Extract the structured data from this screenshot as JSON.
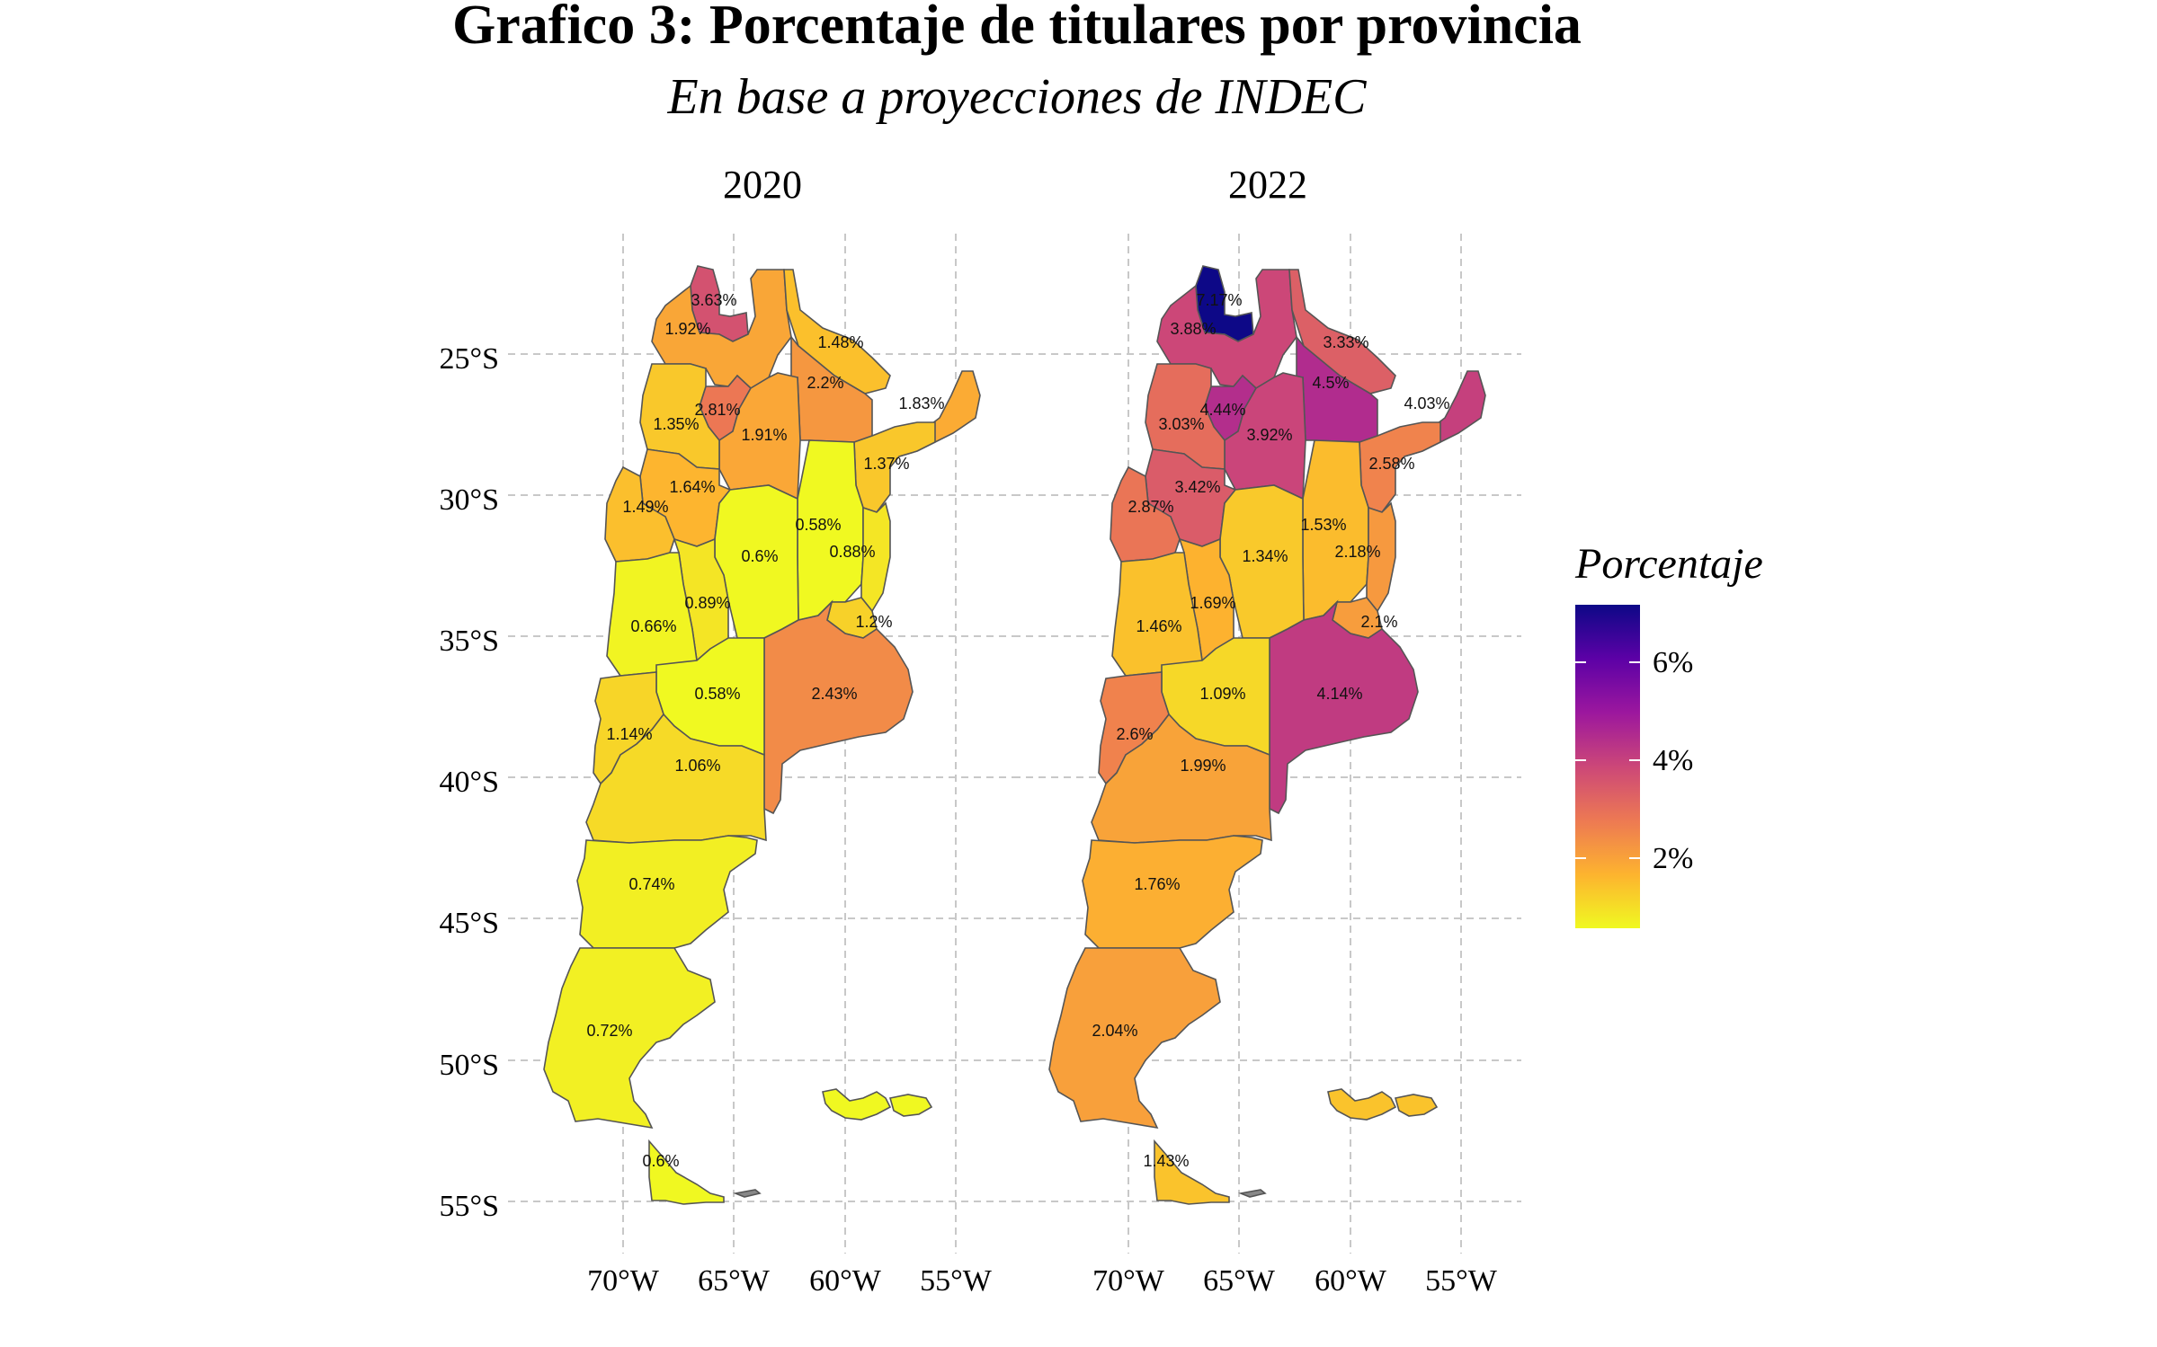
{
  "title": "Grafico 3: Porcentaje de titulares por provincia",
  "subtitle": "En base a proyecciones de INDEC",
  "facets": [
    "2020",
    "2022"
  ],
  "axes": {
    "lat_labels": [
      "25°S",
      "30°S",
      "35°S",
      "40°S",
      "45°S",
      "50°S",
      "55°S"
    ],
    "lon_labels": [
      "70°W",
      "65°W",
      "60°W",
      "55°W"
    ]
  },
  "legend": {
    "title": "Porcentaje",
    "ticks": [
      "6%",
      "4%",
      "2%"
    ],
    "scale": "plasma",
    "min": 0.58,
    "max": 7.17,
    "colors": [
      "#f0f921",
      "#fdb32f",
      "#ed7953",
      "#cc4778",
      "#9c179e",
      "#5c01a6",
      "#0d0887"
    ]
  },
  "provinces": [
    {
      "name": "Jujuy",
      "v2020": "3.63%",
      "v2022": "7.17%"
    },
    {
      "name": "Salta",
      "v2020": "1.92%",
      "v2022": "3.88%"
    },
    {
      "name": "Formosa",
      "v2020": "1.48%",
      "v2022": "3.33%"
    },
    {
      "name": "Chaco",
      "v2020": "2.2%",
      "v2022": "4.5%"
    },
    {
      "name": "Misiones",
      "v2020": "1.83%",
      "v2022": "4.03%"
    },
    {
      "name": "Tucuman",
      "v2020": "2.81%",
      "v2022": "4.44%"
    },
    {
      "name": "Santiago del Estero",
      "v2020": "1.91%",
      "v2022": "3.92%"
    },
    {
      "name": "Catamarca",
      "v2020": "1.35%",
      "v2022": "3.03%"
    },
    {
      "name": "Corrientes",
      "v2020": "1.37%",
      "v2022": "2.58%"
    },
    {
      "name": "La Rioja",
      "v2020": "1.64%",
      "v2022": "3.42%"
    },
    {
      "name": "San Juan",
      "v2020": "1.49%",
      "v2022": "2.87%"
    },
    {
      "name": "Santa Fe",
      "v2020": "0.58%",
      "v2022": "1.53%"
    },
    {
      "name": "Cordoba",
      "v2020": "0.6%",
      "v2022": "1.34%"
    },
    {
      "name": "Entre Rios",
      "v2020": "0.88%",
      "v2022": "2.18%"
    },
    {
      "name": "San Luis",
      "v2020": "0.89%",
      "v2022": "1.69%"
    },
    {
      "name": "Mendoza",
      "v2020": "0.66%",
      "v2022": "1.46%"
    },
    {
      "name": "CABA",
      "v2020": "1.2%",
      "v2022": "2.1%"
    },
    {
      "name": "Buenos Aires",
      "v2020": "2.43%",
      "v2022": "4.14%"
    },
    {
      "name": "La Pampa",
      "v2020": "0.58%",
      "v2022": "1.09%"
    },
    {
      "name": "Neuquen",
      "v2020": "1.14%",
      "v2022": "2.6%"
    },
    {
      "name": "Rio Negro",
      "v2020": "1.06%",
      "v2022": "1.99%"
    },
    {
      "name": "Chubut",
      "v2020": "0.74%",
      "v2022": "1.76%"
    },
    {
      "name": "Santa Cruz",
      "v2020": "0.72%",
      "v2022": "2.04%"
    },
    {
      "name": "Tierra del Fuego",
      "v2020": "0.6%",
      "v2022": "1.43%"
    }
  ]
}
